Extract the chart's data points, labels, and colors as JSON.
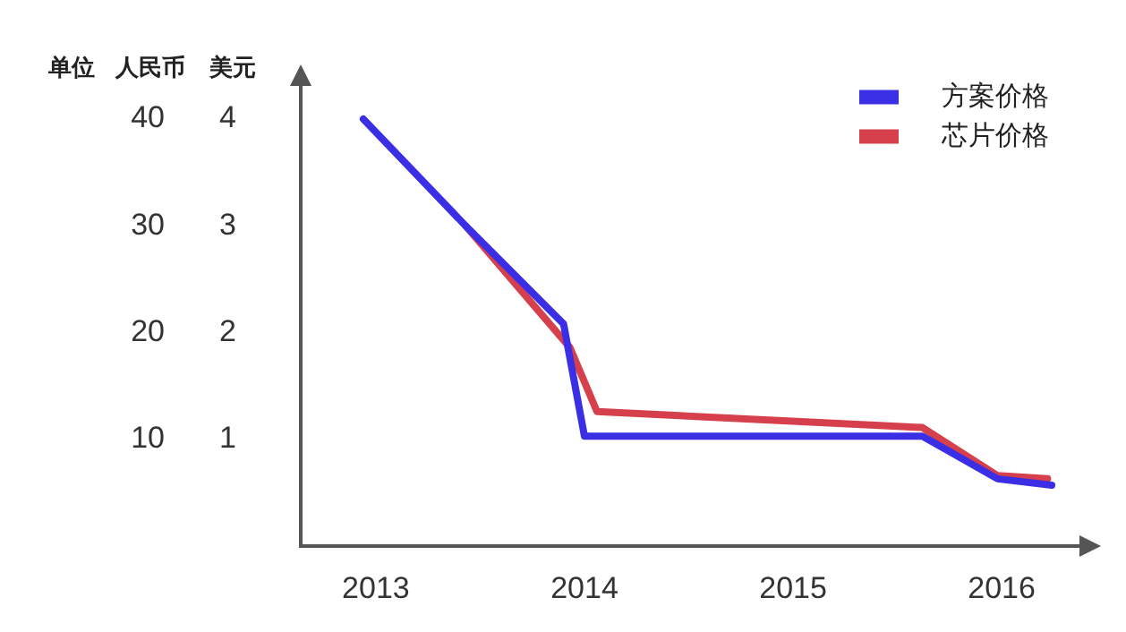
{
  "chart_data": {
    "type": "line",
    "ylabel": "人民币",
    "y2label": "美元",
    "annotations": [
      "单位"
    ],
    "xlim": [
      2012.64,
      2016.39
    ],
    "xticks": [
      2013,
      2014,
      2015,
      2016
    ],
    "ylim": [
      0,
      43.4
    ],
    "yticks": [
      10,
      20,
      30,
      40
    ],
    "y2lim": [
      0,
      4.34
    ],
    "y2ticks": [
      1,
      2,
      3,
      4
    ],
    "grid": false,
    "legend": "top right",
    "marker": "none",
    "line_style": "solid",
    "series": [
      {
        "name": "方案价格",
        "color": "#3b2fe6",
        "x": [
          2012.94,
          2013.43,
          2013.9,
          2014.0,
          2015.62,
          2015.98,
          2016.24
        ],
        "values": [
          40,
          30,
          20.8,
          10.3,
          10.3,
          6.3,
          5.7
        ]
      },
      {
        "name": "芯片价格",
        "color": "#d63f4c",
        "x": [
          2013.43,
          2013.93,
          2014.06,
          2015.62,
          2015.98,
          2016.22
        ],
        "values": [
          30,
          18.6,
          12.6,
          11.1,
          6.6,
          6.3
        ]
      }
    ]
  }
}
